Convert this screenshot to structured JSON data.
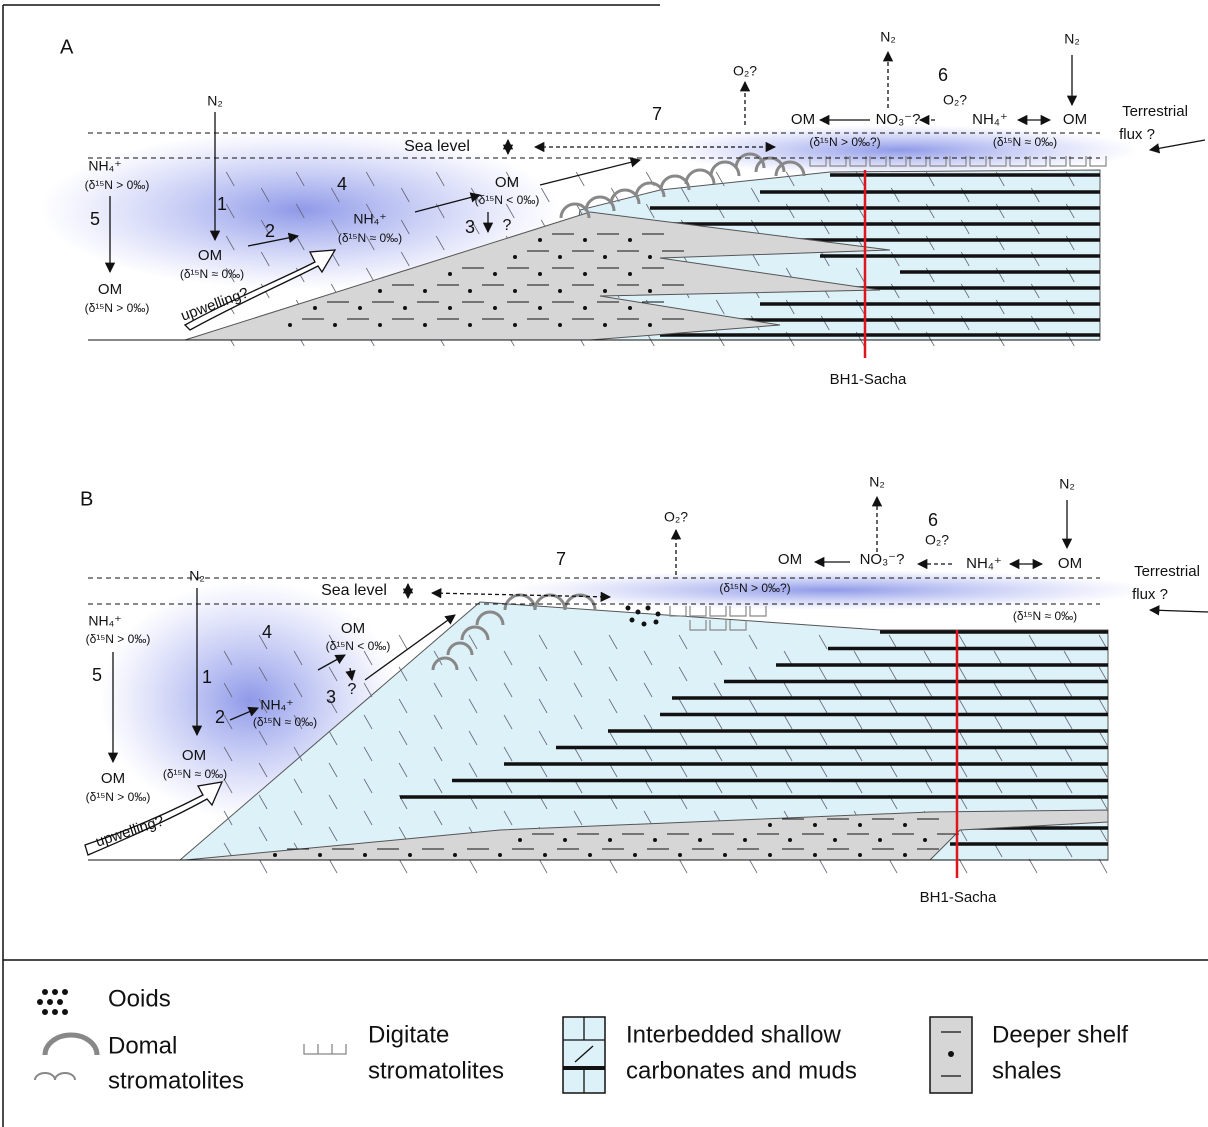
{
  "panels": [
    {
      "label": "A",
      "texts": [
        "N₂",
        "1",
        "OM",
        "(δ¹⁵N ≈ 0‰)",
        "2",
        "upwelling?",
        "NH₄⁺",
        "(δ¹⁵N > 0‰)",
        "5",
        "OM",
        "(δ¹⁵N > 0‰)",
        "4",
        "NH₄⁺",
        "(δ¹⁵N ≈ 0‰)",
        "OM",
        "(δ¹⁵N < 0‰)",
        "3",
        "?",
        "Sea level",
        "7",
        "O₂?",
        "N₂",
        "6",
        "O₂?",
        "OM",
        "NO₃⁻?",
        "NH₄⁺",
        "OM",
        "(δ¹⁵N > 0‰?)",
        "(δ¹⁵N ≈ 0‰)",
        "N₂",
        "Terrestrial",
        "flux ?",
        "BH1-Sacha"
      ]
    },
    {
      "label": "B",
      "texts": [
        "N₂",
        "1",
        "OM",
        "(δ¹⁵N ≈ 0‰)",
        "2",
        "upwelling?",
        "NH₄⁺",
        "(δ¹⁵N > 0‰)",
        "5",
        "OM",
        "(δ¹⁵N > 0‰)",
        "4",
        "NH₄⁺",
        "(δ¹⁵N ≈ 0‰)",
        "OM",
        "(δ¹⁵N < 0‰)",
        "3",
        "?",
        "Sea level",
        "7",
        "O₂?",
        "N₂",
        "6",
        "O₂?",
        "OM",
        "NO₃⁻?",
        "NH₄⁺",
        "OM",
        "(δ¹⁵N > 0‰?)",
        "(δ¹⁵N ≈ 0‰)",
        "N₂",
        "Terrestrial",
        "flux ?",
        "BH1-Sacha"
      ]
    }
  ],
  "legend": [
    {
      "lines": [
        "Ooids"
      ]
    },
    {
      "lines": [
        "Domal",
        "stromatolites"
      ]
    },
    {
      "lines": [
        "Digitate",
        "stromatolites"
      ]
    },
    {
      "lines": [
        "Interbedded shallow",
        "carbonates and muds"
      ]
    },
    {
      "lines": [
        "Deeper shelf",
        "shales"
      ]
    }
  ]
}
